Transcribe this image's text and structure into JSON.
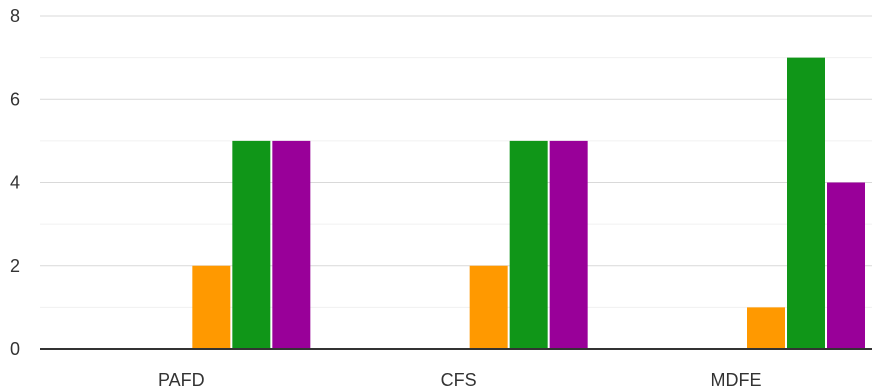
{
  "chart_data": {
    "type": "bar",
    "title": "",
    "xlabel": "",
    "ylabel": "",
    "categories": [
      "PAFD",
      "CFS",
      "MDFE"
    ],
    "ylim": [
      0,
      8
    ],
    "yticks": [
      0,
      2,
      4,
      6,
      8
    ],
    "minor_gridlines": true,
    "legend": "none",
    "series": [
      {
        "color": "#3366cc",
        "values": [
          0,
          0,
          0
        ]
      },
      {
        "color": "#dc3912",
        "values": [
          0,
          0,
          0
        ]
      },
      {
        "color": "#ff9900",
        "values": [
          2,
          2,
          1
        ]
      },
      {
        "color": "#109618",
        "values": [
          5,
          5,
          7
        ]
      },
      {
        "color": "#990099",
        "values": [
          5,
          5,
          4
        ]
      }
    ]
  }
}
